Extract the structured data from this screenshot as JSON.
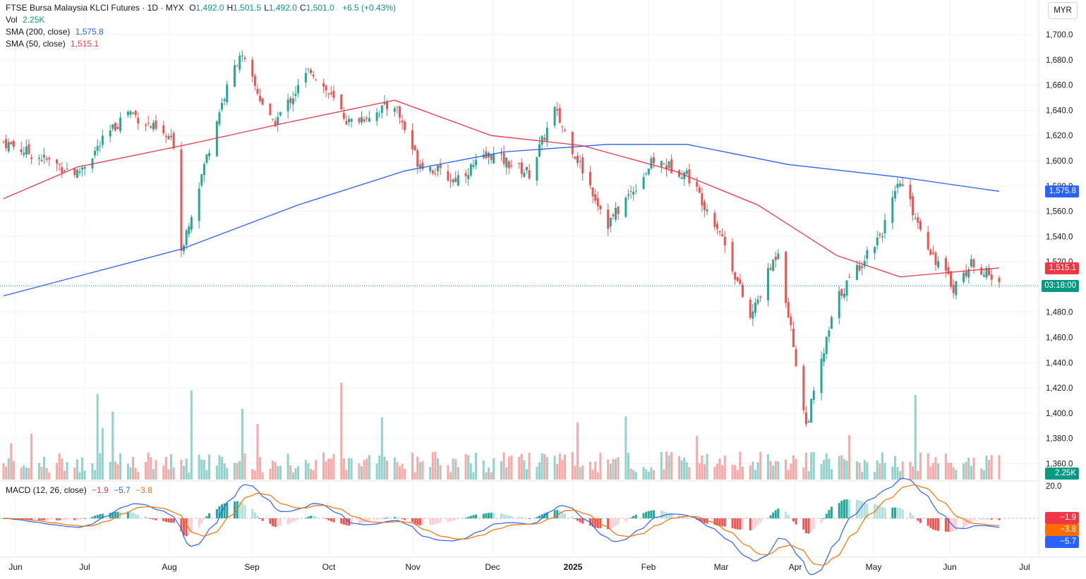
{
  "header": {
    "symbol": "FTSE Bursa Malaysia KLCI Futures · 1D · MYX",
    "ohlc": [
      {
        "k": "O",
        "v": "1,492.0"
      },
      {
        "k": "H",
        "v": "1,501.5"
      },
      {
        "k": "L",
        "v": "1,492.0"
      },
      {
        "k": "C",
        "v": "1,501.0"
      }
    ],
    "change": "+6.5 (+0.43%)",
    "vol_label": "Vol",
    "vol_value": "2.25K",
    "sma200_label": "SMA (200, close)",
    "sma200_value": "1,575.8",
    "sma50_label": "SMA (50, close)",
    "sma50_value": "1,515.1",
    "macd_label": "MACD (12, 26, close)",
    "macd_values": [
      "−1.9",
      "−5.7",
      "−3.8"
    ]
  },
  "currency_button": "MYR",
  "price_axis": {
    "ticks": [
      "1,700.0",
      "1,680.0",
      "1,660.0",
      "1,640.0",
      "1,620.0",
      "1,600.0",
      "1,580.0",
      "1,560.0",
      "1,540.0",
      "1,520.0",
      "1,500.0",
      "1,480.0",
      "1,460.0",
      "1,440.0",
      "1,420.0",
      "1,400.0",
      "1,380.0",
      "1,360.0"
    ]
  },
  "macd_axis": {
    "tick": "20.0"
  },
  "time_axis": {
    "labels": [
      "Jun",
      "Jul",
      "Aug",
      "Sep",
      "Oct",
      "Nov",
      "Dec",
      "2025",
      "Feb",
      "Mar",
      "Apr",
      "May",
      "Jun",
      "Jul"
    ]
  },
  "tags": {
    "sma200": "1,575.8",
    "sma50": "1,515.1",
    "countdown": "03:18:00",
    "volume": "2.25K",
    "macd_hist": "−1.9",
    "macd_signal": "−3.8",
    "macd_line": "−5.7"
  },
  "colors": {
    "up": "#26a69a",
    "down": "#ef5350",
    "sma200": "#2962ff",
    "sma50": "#f23645",
    "macd_line": "#2962ff",
    "macd_signal": "#ff6d00",
    "grid": "#f0f3fa"
  },
  "chart_data": {
    "type": "candlestick",
    "title": "FTSE Bursa Malaysia KLCI Futures · 1D · MYX",
    "ylim": [
      1350,
      1710
    ],
    "last_close": 1501.0,
    "key_points": [
      {
        "date": "2024-05-27",
        "close": 1615
      },
      {
        "date": "2024-06-25",
        "close": 1590
      },
      {
        "date": "2024-07-15",
        "close": 1640
      },
      {
        "date": "2024-08-02",
        "close": 1614
      },
      {
        "date": "2024-08-05",
        "close": 1530
      },
      {
        "date": "2024-08-20",
        "close": 1640
      },
      {
        "date": "2024-08-28",
        "close": 1685
      },
      {
        "date": "2024-09-10",
        "close": 1628
      },
      {
        "date": "2024-09-25",
        "close": 1673
      },
      {
        "date": "2024-10-10",
        "close": 1630
      },
      {
        "date": "2024-10-28",
        "close": 1645
      },
      {
        "date": "2024-11-06",
        "close": 1600
      },
      {
        "date": "2024-11-20",
        "close": 1585
      },
      {
        "date": "2024-12-05",
        "close": 1605
      },
      {
        "date": "2024-12-20",
        "close": 1590
      },
      {
        "date": "2024-12-30",
        "close": 1640
      },
      {
        "date": "2025-01-20",
        "close": 1550
      },
      {
        "date": "2025-02-07",
        "close": 1600
      },
      {
        "date": "2025-02-20",
        "close": 1590
      },
      {
        "date": "2025-03-05",
        "close": 1545
      },
      {
        "date": "2025-03-17",
        "close": 1475
      },
      {
        "date": "2025-03-28",
        "close": 1530
      },
      {
        "date": "2025-04-08",
        "close": 1390
      },
      {
        "date": "2025-04-20",
        "close": 1490
      },
      {
        "date": "2025-05-08",
        "close": 1545
      },
      {
        "date": "2025-05-15",
        "close": 1583
      },
      {
        "date": "2025-05-28",
        "close": 1525
      },
      {
        "date": "2025-06-05",
        "close": 1500
      },
      {
        "date": "2025-06-13",
        "close": 1520
      },
      {
        "date": "2025-06-23",
        "close": 1501
      }
    ],
    "sma200_points": [
      {
        "date": "2024-05-27",
        "value": 1493
      },
      {
        "date": "2024-08-05",
        "value": 1530
      },
      {
        "date": "2024-09-20",
        "value": 1565
      },
      {
        "date": "2024-11-01",
        "value": 1592
      },
      {
        "date": "2024-12-10",
        "value": 1607
      },
      {
        "date": "2025-01-20",
        "value": 1613
      },
      {
        "date": "2025-02-20",
        "value": 1613
      },
      {
        "date": "2025-04-01",
        "value": 1597
      },
      {
        "date": "2025-05-15",
        "value": 1587
      },
      {
        "date": "2025-06-23",
        "value": 1575.8
      }
    ],
    "sma50_points": [
      {
        "date": "2024-05-27",
        "value": 1570
      },
      {
        "date": "2024-06-25",
        "value": 1595
      },
      {
        "date": "2024-08-10",
        "value": 1614
      },
      {
        "date": "2024-09-15",
        "value": 1630
      },
      {
        "date": "2024-10-28",
        "value": 1648
      },
      {
        "date": "2024-12-05",
        "value": 1620
      },
      {
        "date": "2025-01-10",
        "value": 1612
      },
      {
        "date": "2025-02-15",
        "value": 1592
      },
      {
        "date": "2025-03-20",
        "value": 1565
      },
      {
        "date": "2025-04-20",
        "value": 1525
      },
      {
        "date": "2025-05-15",
        "value": 1508
      },
      {
        "date": "2025-06-23",
        "value": 1515.1
      }
    ],
    "macd_ylim": [
      -30,
      25
    ],
    "macd_last": {
      "histogram": -1.9,
      "macd": -5.7,
      "signal": -3.8
    }
  }
}
